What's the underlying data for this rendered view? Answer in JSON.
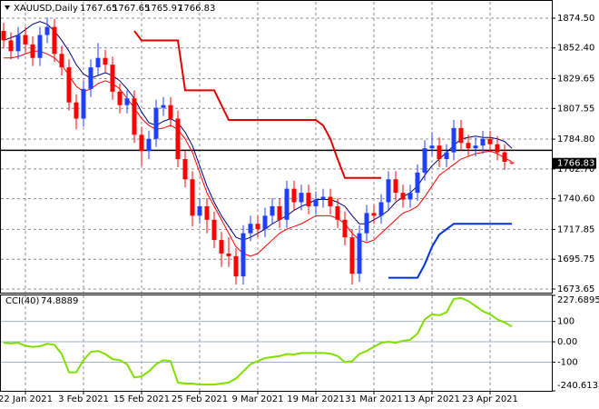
{
  "chart_data": {
    "type": "candlestick",
    "title": "XAUUSD,Daily",
    "categories": [
      null,
      null,
      null,
      "22 Jan 2021",
      null,
      null,
      null,
      null,
      null,
      null,
      null,
      "3 Feb 2021",
      null,
      null,
      null,
      null,
      null,
      null,
      null,
      "15 Feb 2021",
      null,
      null,
      null,
      null,
      null,
      null,
      null,
      "25 Feb 2021",
      null,
      null,
      null,
      null,
      null,
      null,
      null,
      "9 Mar 2021",
      null,
      null,
      null,
      null,
      null,
      null,
      null,
      "19 Mar 2021",
      null,
      null,
      null,
      null,
      null,
      null,
      null,
      "31 Mar 2021",
      null,
      null,
      null,
      null,
      null,
      null,
      null,
      "13 Apr 2021",
      null,
      null,
      null,
      null,
      null,
      null,
      null,
      "23 Apr 2021",
      null,
      null,
      null
    ],
    "open": [
      1865,
      1858,
      1850,
      1862,
      1855,
      1845,
      1862,
      1868,
      1848,
      1838,
      1812,
      1800,
      1822,
      1838,
      1845,
      1840,
      1820,
      1810,
      1815,
      1788,
      1776,
      1785,
      1808,
      1810,
      1800,
      1770,
      1755,
      1728,
      1735,
      1725,
      1710,
      1700,
      1698,
      1683,
      1715,
      1722,
      1718,
      1728,
      1735,
      1725,
      1748,
      1738,
      1745,
      1735,
      1740,
      1742,
      1735,
      1725,
      1712,
      1685,
      1715,
      1730,
      1728,
      1738,
      1755,
      1745,
      1740,
      1745,
      1760,
      1778,
      1780,
      1770,
      1775,
      1793,
      1782,
      1778,
      1780,
      1785,
      1781,
      1775,
      1767.65
    ],
    "high": [
      1871,
      1864,
      1868,
      1868,
      1861,
      1868,
      1875,
      1874,
      1854,
      1844,
      1818,
      1828,
      1844,
      1856,
      1851,
      1846,
      1826,
      1821,
      1821,
      1794,
      1791,
      1814,
      1816,
      1816,
      1806,
      1776,
      1761,
      1741,
      1741,
      1731,
      1716,
      1712,
      1704,
      1721,
      1728,
      1728,
      1734,
      1741,
      1741,
      1754,
      1754,
      1751,
      1751,
      1746,
      1748,
      1748,
      1741,
      1731,
      1718,
      1721,
      1736,
      1736,
      1744,
      1761,
      1761,
      1751,
      1751,
      1766,
      1784,
      1790,
      1786,
      1781,
      1799,
      1799,
      1788,
      1786,
      1791,
      1791,
      1787,
      1781,
      1767.65
    ],
    "low": [
      1852,
      1844,
      1844,
      1849,
      1839,
      1839,
      1856,
      1842,
      1832,
      1806,
      1792,
      1794,
      1816,
      1832,
      1834,
      1814,
      1804,
      1804,
      1782,
      1765,
      1770,
      1779,
      1802,
      1794,
      1764,
      1749,
      1720,
      1722,
      1715,
      1704,
      1690,
      1690,
      1677,
      1677,
      1709,
      1712,
      1712,
      1722,
      1719,
      1719,
      1732,
      1732,
      1729,
      1729,
      1734,
      1729,
      1719,
      1706,
      1677,
      1679,
      1709,
      1722,
      1722,
      1732,
      1739,
      1734,
      1734,
      1739,
      1754,
      1772,
      1764,
      1764,
      1769,
      1776,
      1772,
      1772,
      1774,
      1775,
      1769,
      1762,
      1765.97
    ],
    "close": [
      1858,
      1850,
      1862,
      1855,
      1845,
      1862,
      1868,
      1848,
      1838,
      1812,
      1800,
      1822,
      1838,
      1845,
      1840,
      1820,
      1810,
      1815,
      1788,
      1776,
      1785,
      1808,
      1810,
      1800,
      1770,
      1755,
      1728,
      1735,
      1725,
      1710,
      1700,
      1698,
      1683,
      1715,
      1722,
      1718,
      1728,
      1735,
      1725,
      1748,
      1738,
      1745,
      1735,
      1740,
      1742,
      1735,
      1725,
      1712,
      1685,
      1715,
      1730,
      1728,
      1738,
      1755,
      1745,
      1740,
      1745,
      1760,
      1778,
      1780,
      1770,
      1775,
      1793,
      1782,
      1778,
      1780,
      1785,
      1781,
      1775,
      1768,
      1766.83
    ],
    "up_color": "#1f3fff",
    "down_color": "#ff0000",
    "lines": [
      {
        "color": "#000080",
        "width": 1,
        "values": [
          1858,
          1860,
          1862,
          1866,
          1870,
          1872,
          1870,
          1865,
          1858,
          1850,
          1840,
          1833,
          1830,
          1832,
          1834,
          1832,
          1828,
          1822,
          1815,
          1805,
          1797,
          1795,
          1798,
          1800,
          1797,
          1790,
          1780,
          1765,
          1750,
          1738,
          1728,
          1720,
          1712,
          1710,
          1712,
          1715,
          1718,
          1722,
          1725,
          1728,
          1732,
          1735,
          1737,
          1740,
          1740,
          1740,
          1738,
          1735,
          1728,
          1722,
          1722,
          1725,
          1728,
          1732,
          1738,
          1742,
          1745,
          1750,
          1758,
          1765,
          1770,
          1775,
          1780,
          1785,
          1786,
          1787,
          1786,
          1786,
          1785,
          1783,
          1778
        ]
      },
      {
        "color": "#ff0000",
        "width": 1,
        "values": [
          1845,
          1845,
          1846,
          1848,
          1850,
          1850,
          1848,
          1845,
          1840,
          1832,
          1824,
          1820,
          1822,
          1826,
          1828,
          1826,
          1822,
          1815,
          1808,
          1800,
          1795,
          1792,
          1793,
          1795,
          1792,
          1785,
          1775,
          1760,
          1745,
          1735,
          1725,
          1715,
          1705,
          1700,
          1698,
          1700,
          1705,
          1710,
          1715,
          1718,
          1720,
          1722,
          1725,
          1728,
          1728,
          1728,
          1726,
          1722,
          1715,
          1710,
          1708,
          1710,
          1715,
          1720,
          1725,
          1730,
          1732,
          1735,
          1742,
          1750,
          1758,
          1762,
          1766,
          1770,
          1772,
          1774,
          1775,
          1776,
          1774,
          1771,
          1768
        ]
      },
      {
        "color": "#e00000",
        "width": 2,
        "values": [
          null,
          null,
          null,
          null,
          null,
          null,
          null,
          null,
          null,
          null,
          null,
          null,
          null,
          null,
          null,
          null,
          null,
          null,
          1865,
          1858,
          1858,
          1858,
          1858,
          1858,
          1858,
          1821,
          1821,
          1821,
          1821,
          1821,
          1810,
          1799,
          1799,
          1799,
          1799,
          1799,
          1799,
          1799,
          1799,
          1799,
          1799,
          1799,
          1799,
          1799,
          1795,
          1785,
          1770,
          1756,
          1756,
          1756,
          1756,
          1756,
          1756,
          null,
          null,
          null,
          null,
          null,
          null,
          null,
          null,
          null,
          null,
          null,
          null,
          null,
          null,
          null,
          null,
          null,
          null
        ]
      },
      {
        "color": "#0033dd",
        "width": 2,
        "values": [
          null,
          null,
          null,
          null,
          null,
          null,
          null,
          null,
          null,
          null,
          null,
          null,
          null,
          null,
          null,
          null,
          null,
          null,
          null,
          null,
          null,
          null,
          null,
          null,
          null,
          null,
          null,
          null,
          null,
          null,
          null,
          null,
          null,
          null,
          null,
          null,
          null,
          null,
          null,
          null,
          null,
          null,
          null,
          null,
          null,
          null,
          null,
          null,
          null,
          null,
          null,
          null,
          null,
          1682,
          1682,
          1682,
          1682,
          1682,
          1692,
          1705,
          1714,
          1718,
          1722,
          1722,
          1722,
          1722,
          1722,
          1722,
          1722,
          1722,
          1722
        ]
      }
    ],
    "level": 1776.5,
    "ylim": [
      1670.95,
      1886.6
    ],
    "yticks": [
      {
        "value": 1874.5,
        "label": "1874.50"
      },
      {
        "value": 1852.4,
        "label": "1852.40"
      },
      {
        "value": 1829.65,
        "label": "1829.65"
      },
      {
        "value": 1807.55,
        "label": "1807.55"
      },
      {
        "value": 1784.8,
        "label": "1784.80"
      },
      {
        "value": 1762.7,
        "label": "1762.70"
      },
      {
        "value": 1740.6,
        "label": "1740.60"
      },
      {
        "value": 1717.85,
        "label": "1717.85"
      },
      {
        "value": 1695.75,
        "label": "1695.75"
      },
      {
        "value": 1673.65,
        "label": "1673.65"
      }
    ],
    "grid": true,
    "cci": {
      "label": "CCI(40)",
      "color": "#7fe000",
      "values": [
        -5,
        -8,
        -5,
        -20,
        -25,
        -22,
        -10,
        -15,
        -60,
        -150,
        -150,
        -90,
        -50,
        -45,
        -60,
        -85,
        -90,
        -110,
        -175,
        -170,
        -145,
        -110,
        -90,
        -95,
        -200,
        -205,
        -205,
        -210,
        -210,
        -210,
        -205,
        -200,
        -180,
        -145,
        -110,
        -95,
        -80,
        -75,
        -70,
        -60,
        -62,
        -55,
        -55,
        -55,
        -55,
        -58,
        -70,
        -100,
        -95,
        -60,
        -45,
        -25,
        -5,
        0,
        -5,
        5,
        10,
        40,
        110,
        135,
        130,
        145,
        210,
        215,
        200,
        175,
        150,
        135,
        110,
        95,
        74.8889
      ],
      "ylim": [
        -240.6138,
        227.6895
      ],
      "yticks": [
        227.6895,
        100,
        {
          "value": 0,
          "label": "0.00"
        },
        -100,
        -240.6138
      ]
    }
  }
}
